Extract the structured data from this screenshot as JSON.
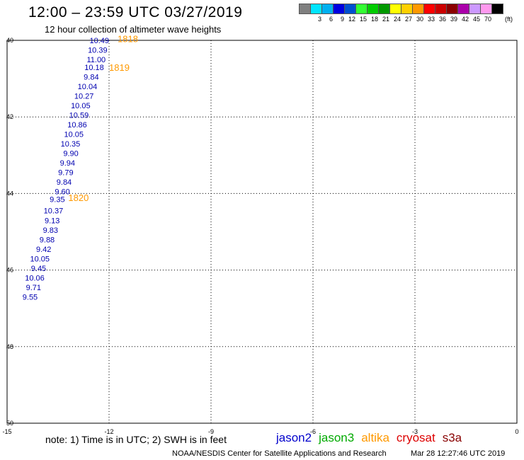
{
  "header": {
    "title": "12:00 – 23:59 UTC 03/27/2019",
    "subtitle": "12 hour collection of altimeter wave heights"
  },
  "colorbar": {
    "unit": "(ft)",
    "entries": [
      {
        "label": "",
        "color": "#808080"
      },
      {
        "label": "3",
        "color": "#00e5ff"
      },
      {
        "label": "6",
        "color": "#00b0f0"
      },
      {
        "label": "9",
        "color": "#0000e0"
      },
      {
        "label": "12",
        "color": "#0050d0"
      },
      {
        "label": "15",
        "color": "#33ff33"
      },
      {
        "label": "18",
        "color": "#00cc00"
      },
      {
        "label": "21",
        "color": "#009900"
      },
      {
        "label": "24",
        "color": "#ffff00"
      },
      {
        "label": "27",
        "color": "#ffd000"
      },
      {
        "label": "30",
        "color": "#ff9900"
      },
      {
        "label": "33",
        "color": "#ff0000"
      },
      {
        "label": "36",
        "color": "#cc0000"
      },
      {
        "label": "39",
        "color": "#8b0000"
      },
      {
        "label": "42",
        "color": "#aa00aa"
      },
      {
        "label": "45",
        "color": "#cc99ff"
      },
      {
        "label": "70",
        "color": "#ff99ee"
      },
      {
        "label": "",
        "color": "#000000"
      }
    ]
  },
  "chart_data": {
    "type": "scatter",
    "xlim": [
      -15,
      0
    ],
    "ylim": [
      -50,
      -40
    ],
    "xticks": [
      -15,
      -12,
      -9,
      -6,
      -3,
      0
    ],
    "yticks": [
      -40,
      -42,
      -44,
      -46,
      -48,
      -50
    ],
    "ytick_labels": [
      "40",
      "42",
      "44",
      "46",
      "48",
      "50"
    ],
    "grid": true,
    "wave_heights": {
      "satellite": "jason2",
      "color": "#0000b0",
      "points": [
        {
          "x": -12.0,
          "y": -40.0,
          "value": "10.49"
        },
        {
          "x": -12.05,
          "y": -40.25,
          "value": "10.39"
        },
        {
          "x": -12.1,
          "y": -40.5,
          "value": "11.00"
        },
        {
          "x": -12.15,
          "y": -40.7,
          "value": "10.18"
        },
        {
          "x": -12.3,
          "y": -40.95,
          "value": "9.84"
        },
        {
          "x": -12.35,
          "y": -41.2,
          "value": "10.04"
        },
        {
          "x": -12.45,
          "y": -41.45,
          "value": "10.27"
        },
        {
          "x": -12.55,
          "y": -41.7,
          "value": "10.05"
        },
        {
          "x": -12.6,
          "y": -41.95,
          "value": "10.59"
        },
        {
          "x": -12.65,
          "y": -42.2,
          "value": "10.86"
        },
        {
          "x": -12.75,
          "y": -42.45,
          "value": "10.05"
        },
        {
          "x": -12.85,
          "y": -42.7,
          "value": "10.35"
        },
        {
          "x": -12.9,
          "y": -42.95,
          "value": "9.90"
        },
        {
          "x": -13.0,
          "y": -43.2,
          "value": "9.94"
        },
        {
          "x": -13.05,
          "y": -43.45,
          "value": "9.79"
        },
        {
          "x": -13.1,
          "y": -43.7,
          "value": "9.84"
        },
        {
          "x": -13.15,
          "y": -43.95,
          "value": "9.60"
        },
        {
          "x": -13.3,
          "y": -44.15,
          "value": "9.35"
        },
        {
          "x": -13.35,
          "y": -44.45,
          "value": "10.37"
        },
        {
          "x": -13.45,
          "y": -44.7,
          "value": "9.13"
        },
        {
          "x": -13.5,
          "y": -44.95,
          "value": "9.83"
        },
        {
          "x": -13.6,
          "y": -45.2,
          "value": "9.88"
        },
        {
          "x": -13.7,
          "y": -45.45,
          "value": "9.42"
        },
        {
          "x": -13.75,
          "y": -45.7,
          "value": "10.05"
        },
        {
          "x": -13.85,
          "y": -45.95,
          "value": "9.45"
        },
        {
          "x": -13.9,
          "y": -46.2,
          "value": "10.06"
        },
        {
          "x": -14.0,
          "y": -46.45,
          "value": "9.71"
        },
        {
          "x": -14.1,
          "y": -46.7,
          "value": "9.55"
        }
      ]
    },
    "pass_times": {
      "color": "#ff9900",
      "labels": [
        {
          "x": -11.75,
          "y": -39.95,
          "text": "1818"
        },
        {
          "x": -12.0,
          "y": -40.7,
          "text": "1819"
        },
        {
          "x": -13.2,
          "y": -44.1,
          "text": "1820"
        }
      ]
    }
  },
  "footer": {
    "note": "note: 1) Time is in UTC; 2) SWH is in feet",
    "satellites": [
      {
        "name": "jason2",
        "color": "#0000cc"
      },
      {
        "name": "jason3",
        "color": "#00aa00"
      },
      {
        "name": "altika",
        "color": "#ff9900"
      },
      {
        "name": "cryosat",
        "color": "#dd0000"
      },
      {
        "name": "s3a",
        "color": "#880000"
      }
    ],
    "credit": "NOAA/NESDIS Center for Satellite Applications and Research",
    "timestamp": "Mar 28 12:27:46 UTC 2019"
  }
}
